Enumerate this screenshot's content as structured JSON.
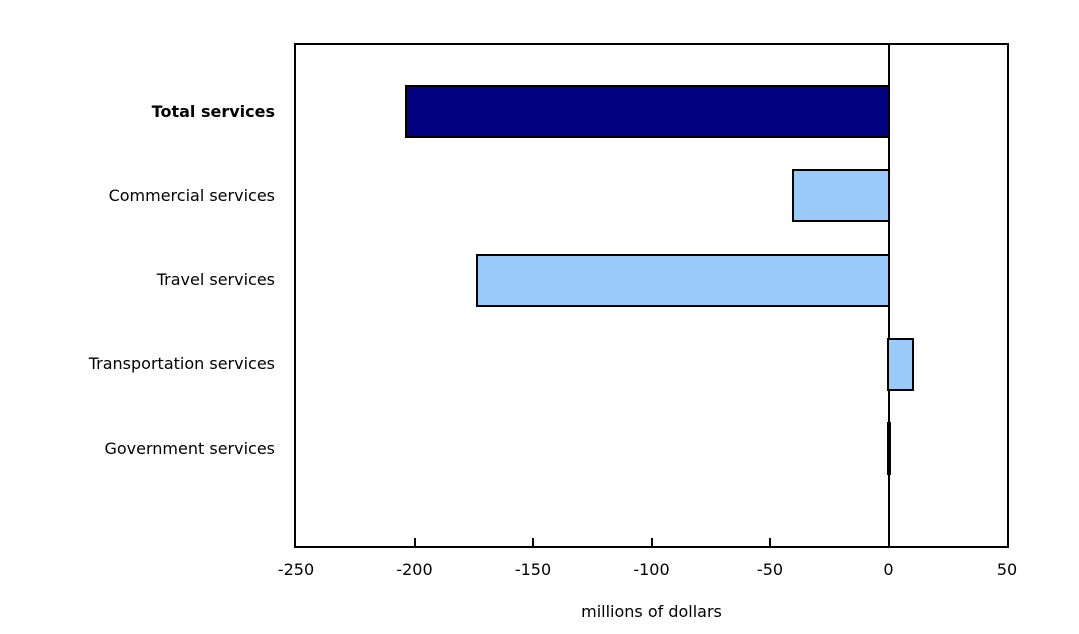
{
  "chart_data": {
    "type": "bar",
    "orientation": "horizontal",
    "xlabel": "millions of dollars",
    "categories": [
      "Total services",
      "Commercial services",
      "Travel services",
      "Transportation services",
      "Government services"
    ],
    "values": [
      -203,
      -40,
      -173,
      10,
      0
    ],
    "xlim": [
      -250,
      50
    ],
    "xticks": [
      -250,
      -200,
      -150,
      -100,
      -50,
      0,
      50
    ],
    "grid": false,
    "legend_position": "none",
    "emphasized_category": "Total services",
    "colors": {
      "total_bar": "#010280",
      "component_bars": "#9ACAFA",
      "bar_border": "#000000",
      "axis": "#000000",
      "background": "#FFFFFF",
      "text": "#000000"
    }
  }
}
